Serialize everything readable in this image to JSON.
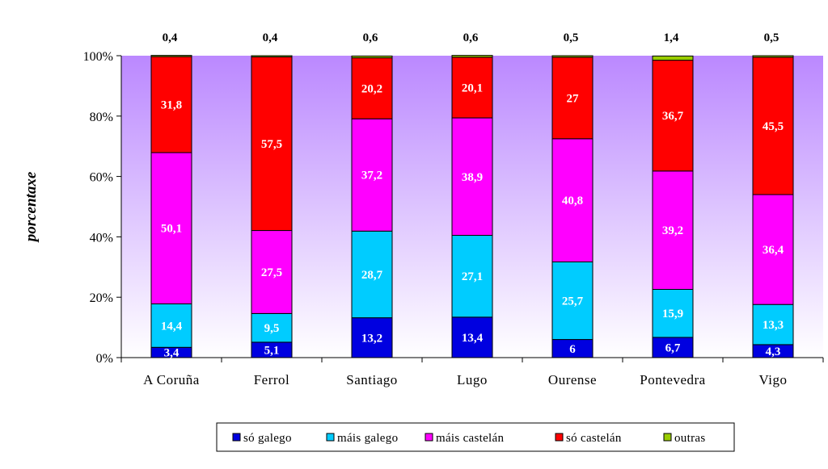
{
  "chart_data": {
    "type": "bar",
    "stacked": true,
    "percent": true,
    "title": "",
    "xlabel": "",
    "ylabel": "porcentaxe",
    "ylim": [
      0,
      100
    ],
    "yticks": [
      "0%",
      "20%",
      "40%",
      "60%",
      "80%",
      "100%"
    ],
    "categories": [
      "A Coruña",
      "Ferrol",
      "Santiago",
      "Lugo",
      "Ourense",
      "Pontevedra",
      "Vigo"
    ],
    "series": [
      {
        "name": "só galego",
        "color": "#0000e0",
        "values": [
          3.4,
          5.1,
          13.2,
          13.4,
          6,
          6.7,
          4.3
        ],
        "labels": [
          "3,4",
          "5,1",
          "13,2",
          "13,4",
          "6",
          "6,7",
          "4,3"
        ]
      },
      {
        "name": "máis galego",
        "color": "#00ccff",
        "values": [
          14.4,
          9.5,
          28.7,
          27.1,
          25.7,
          15.9,
          13.3
        ],
        "labels": [
          "14,4",
          "9,5",
          "28,7",
          "27,1",
          "25,7",
          "15,9",
          "13,3"
        ]
      },
      {
        "name": "máis castelán",
        "color": "#ff00ff",
        "values": [
          50.1,
          27.5,
          37.2,
          38.9,
          40.8,
          39.2,
          36.4
        ],
        "labels": [
          "50,1",
          "27,5",
          "37,2",
          "38,9",
          "40,8",
          "39,2",
          "36,4"
        ]
      },
      {
        "name": "só castelán",
        "color": "#ff0000",
        "values": [
          31.8,
          57.5,
          20.2,
          20.1,
          27,
          36.7,
          45.5
        ],
        "labels": [
          "31,8",
          "57,5",
          "20,2",
          "20,1",
          "27",
          "36,7",
          "45,5"
        ]
      },
      {
        "name": "outras",
        "color": "#99cc00",
        "values": [
          0.4,
          0.4,
          0.6,
          0.6,
          0.5,
          1.4,
          0.5
        ],
        "labels": [
          "0,4",
          "0,4",
          "0,6",
          "0,6",
          "0,5",
          "1,4",
          "0,5"
        ]
      }
    ],
    "legend": "bottom",
    "grid": false,
    "background_gradient": [
      "#bb88ff",
      "#ffffff"
    ]
  }
}
